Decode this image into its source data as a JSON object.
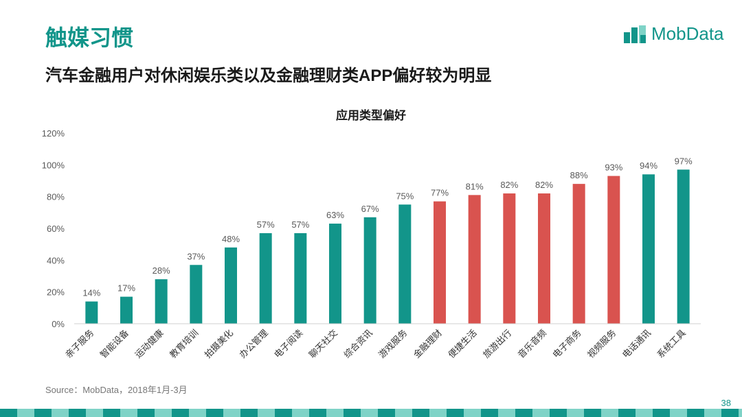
{
  "slide": {
    "title": "触媒习惯",
    "subtitle": "汽车金融用户对休闲娱乐类以及金融理财类APP偏好较为明显",
    "source": "Source：MobData，2018年1月-3月",
    "page_number": "38"
  },
  "logo": {
    "text": "MobData",
    "icon": "mobdata-logo-icon"
  },
  "colors": {
    "teal": "#12958a",
    "red": "#d9534f",
    "axis": "#d0d0d0",
    "text": "#595959"
  },
  "chart_data": {
    "type": "bar",
    "title": "应用类型偏好",
    "xlabel": "",
    "ylabel": "",
    "ylim": [
      0,
      120
    ],
    "yticks": [
      "0%",
      "20%",
      "40%",
      "60%",
      "80%",
      "100%",
      "120%"
    ],
    "grid": false,
    "categories": [
      "亲子服务",
      "智能设备",
      "运动健康",
      "教育培训",
      "拍摄美化",
      "办公管理",
      "电子阅读",
      "聊天社交",
      "综合资讯",
      "游戏服务",
      "金融理财",
      "便捷生活",
      "旅游出行",
      "音乐音频",
      "电子商务",
      "视频服务",
      "电话通讯",
      "系统工具"
    ],
    "values": [
      14,
      17,
      28,
      37,
      48,
      57,
      57,
      63,
      67,
      75,
      77,
      81,
      82,
      82,
      88,
      93,
      94,
      97
    ],
    "labels": [
      "14%",
      "17%",
      "28%",
      "37%",
      "48%",
      "57%",
      "57%",
      "63%",
      "67%",
      "75%",
      "77%",
      "81%",
      "82%",
      "82%",
      "88%",
      "93%",
      "94%",
      "97%"
    ],
    "bar_colors": [
      "teal",
      "teal",
      "teal",
      "teal",
      "teal",
      "teal",
      "teal",
      "teal",
      "teal",
      "teal",
      "red",
      "red",
      "red",
      "red",
      "red",
      "red",
      "teal",
      "teal"
    ]
  }
}
